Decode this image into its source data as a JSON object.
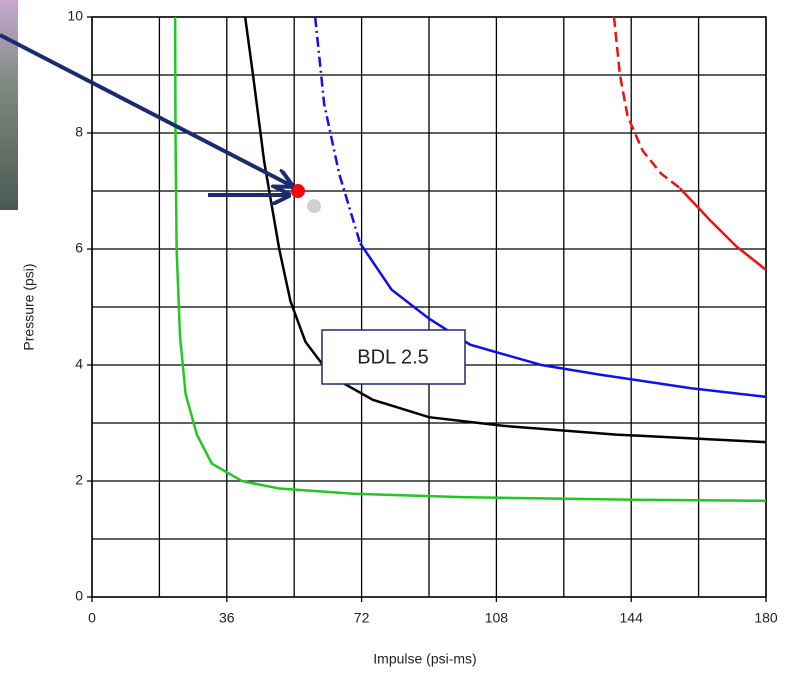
{
  "chart_data": {
    "type": "line",
    "x_label": "Impulse (psi-ms)",
    "y_label": "Pressure (psi)",
    "xlim": [
      0,
      180
    ],
    "ylim": [
      0,
      10
    ],
    "xticks": [
      0,
      36,
      72,
      108,
      144,
      180
    ],
    "yticks": [
      0,
      2,
      4,
      6,
      8,
      10
    ],
    "x_minor_ticks": [
      18,
      54,
      90,
      126,
      162
    ],
    "y_minor_ticks": [
      1,
      3,
      5,
      7,
      9
    ],
    "grid": true,
    "series": [
      {
        "color": "#22c822",
        "dash": "solid",
        "x": [
          22.2,
          22.3,
          22.6,
          23.5,
          25,
          28,
          32,
          40,
          50,
          70,
          100,
          140,
          180
        ],
        "values": [
          10,
          8,
          6,
          4.5,
          3.5,
          2.8,
          2.3,
          2.0,
          1.87,
          1.78,
          1.72,
          1.68,
          1.66
        ]
      },
      {
        "color": "#000000",
        "dash": "solid",
        "x": [
          40.9,
          43,
          46,
          50,
          53,
          57,
          64,
          75,
          90,
          110,
          140,
          180
        ],
        "values": [
          10,
          9,
          7.5,
          6,
          5.1,
          4.4,
          3.8,
          3.4,
          3.1,
          2.95,
          2.8,
          2.67
        ]
      },
      {
        "color": "#1010ee",
        "dash": "dashdot",
        "x": [
          59.6,
          62,
          66,
          71.6
        ],
        "values": [
          10,
          8.5,
          7.3,
          6.1
        ]
      },
      {
        "color": "#1010ee",
        "dash": "solid",
        "x": [
          71.6,
          80,
          90,
          101,
          120,
          136,
          160,
          180
        ],
        "values": [
          6.1,
          5.3,
          4.8,
          4.35,
          4.0,
          3.83,
          3.6,
          3.45
        ]
      },
      {
        "color": "#ee1111",
        "dash": "dash",
        "x": [
          139.4,
          141,
          143,
          147,
          152,
          157
        ],
        "values": [
          10,
          9,
          8.3,
          7.7,
          7.3,
          7.05
        ]
      },
      {
        "color": "#ee1111",
        "dash": "solid",
        "x": [
          157,
          165,
          172,
          180
        ],
        "values": [
          7.05,
          6.5,
          6.05,
          5.64
        ]
      }
    ],
    "points": [
      {
        "x": 59.3,
        "y": 6.74,
        "color": "#d0d0d0"
      },
      {
        "x": 55,
        "y": 7,
        "color": "#ff0000"
      }
    ],
    "annotation": "BDL 2.5"
  }
}
